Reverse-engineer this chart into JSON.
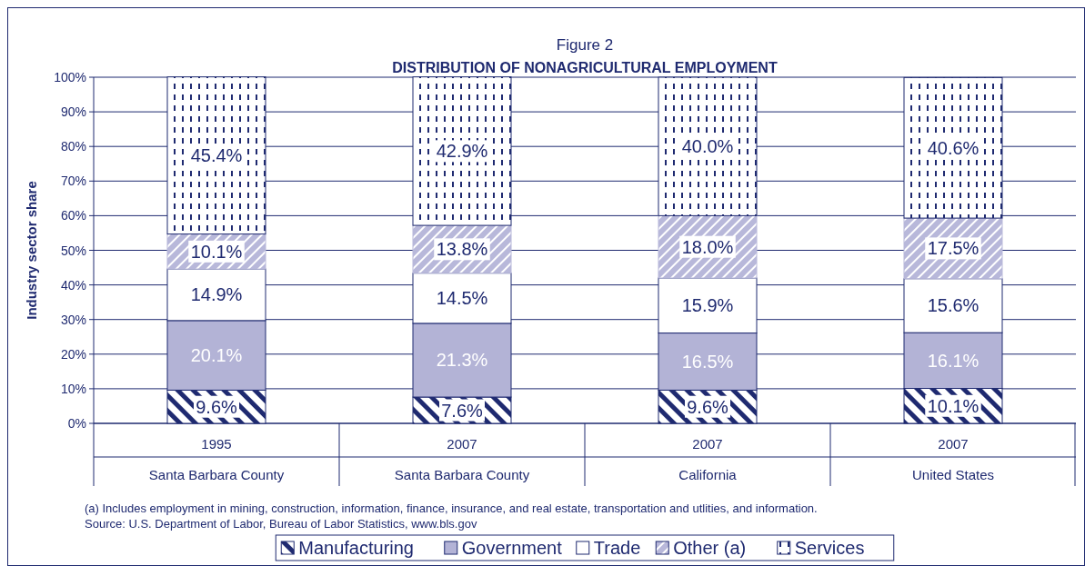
{
  "chart_data": {
    "type": "bar",
    "stacked": true,
    "title": "Figure 2",
    "subtitle": "DISTRIBUTION OF NONAGRICULTURAL EMPLOYMENT",
    "ylabel": "Industry sector share",
    "categories": [
      "1995\nSanta Barbara County",
      "2007\nSanta Barbara County",
      "2007\nCalifornia",
      "2007\nUnited States"
    ],
    "series": [
      {
        "name": "Manufacturing",
        "color": "#1f2a70",
        "values": [
          9.6,
          7.6,
          9.6,
          10.1
        ],
        "value_labels": [
          "9.6%",
          "7.6%",
          "9.6%",
          "10.1%"
        ]
      },
      {
        "name": "Government",
        "color": "#b3b3d6",
        "values": [
          20.1,
          21.3,
          16.5,
          16.1
        ],
        "value_labels": [
          "20.1%",
          "21.3%",
          "16.5%",
          "16.1%"
        ]
      },
      {
        "name": "Trade",
        "color": "#ffffff",
        "values": [
          14.9,
          14.5,
          15.9,
          15.6
        ],
        "value_labels": [
          "14.9%",
          "14.5%",
          "15.9%",
          "15.6%"
        ]
      },
      {
        "name": "Other (a)",
        "color": "#b8b8da",
        "values": [
          10.1,
          13.8,
          18.0,
          17.5
        ],
        "value_labels": [
          "10.1%",
          "13.8%",
          "18.0%",
          "17.5%"
        ]
      },
      {
        "name": "Services",
        "color": "#1f2a70",
        "values": [
          45.4,
          42.9,
          40.0,
          40.6
        ],
        "value_labels": [
          "45.4%",
          "42.9%",
          "40.0%",
          "40.6%"
        ]
      }
    ],
    "ylim": [
      0,
      100
    ],
    "yticks": [
      {
        "value": 0,
        "label": "0%"
      },
      {
        "value": 10,
        "label": "10%"
      },
      {
        "value": 20,
        "label": "20%"
      },
      {
        "value": 30,
        "label": "30%"
      },
      {
        "value": 40,
        "label": "40%"
      },
      {
        "value": 50,
        "label": "50%"
      },
      {
        "value": 60,
        "label": "60%"
      },
      {
        "value": 70,
        "label": "70%"
      },
      {
        "value": 80,
        "label": "80%"
      },
      {
        "value": 90,
        "label": "90%"
      },
      {
        "value": 100,
        "label": "100%"
      }
    ],
    "grid": "y",
    "legend": "bottom",
    "annotations": [
      "(a)  Includes employment in mining, construction, information, finance, insurance, and real estate, transportation and utlities, and information.",
      "Source:  U.S. Department of Labor, Bureau of Labor Statistics, www.bls.gov"
    ]
  }
}
